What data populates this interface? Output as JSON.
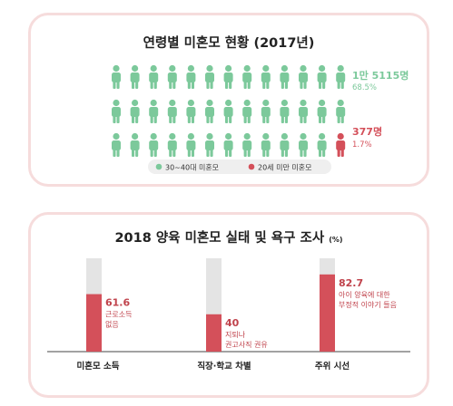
{
  "charts": {
    "top": {
      "title": "연령별 미혼모 현황 (2017년)",
      "stat_main": {
        "count": "1만 5115명",
        "percent": "68.5%"
      },
      "stat_minor": {
        "count": "377명",
        "percent": "1.7%"
      },
      "legend": [
        {
          "label": "30~40대 미혼모",
          "color": "#7cc99b"
        },
        {
          "label": "20세 미만 미혼모",
          "color": "#d4505a"
        }
      ]
    },
    "bottom": {
      "title": "2018 양육 미혼모 실태 및 욕구 조사",
      "unit": "(%)"
    }
  },
  "chart_data": [
    {
      "type": "pictograph",
      "title": "연령별 미혼모 현황 (2017년)",
      "rows": 3,
      "per_row": 13,
      "highlight_row": 3,
      "highlight_column": 13,
      "colors": {
        "main": "#7cc99b",
        "highlight": "#d4505a"
      },
      "series": [
        {
          "name": "30~40대 미혼모",
          "count": "1만 5115명",
          "percent": 68.5
        },
        {
          "name": "20세 미만 미혼모",
          "count": "377명",
          "percent": 1.7
        }
      ]
    },
    {
      "type": "bar",
      "title": "2018 양육 미혼모 실태 및 욕구 조사",
      "unit": "(%)",
      "ylim": [
        0,
        100
      ],
      "categories": [
        "미혼모 소득",
        "직장·학교 차별",
        "주위 시선"
      ],
      "values": [
        61.6,
        40,
        82.7
      ],
      "value_labels": [
        "61.6",
        "40",
        "82.7"
      ],
      "descriptions": [
        [
          "근로소득",
          "없음"
        ],
        [
          "지퇴나",
          "권고사직 권유"
        ],
        [
          "아이 양육에 대한",
          "부정적 이야기 들음"
        ]
      ],
      "colors": {
        "bar": "#d4505a",
        "track": "#e4e4e4",
        "label": "#c0434c"
      }
    }
  ]
}
